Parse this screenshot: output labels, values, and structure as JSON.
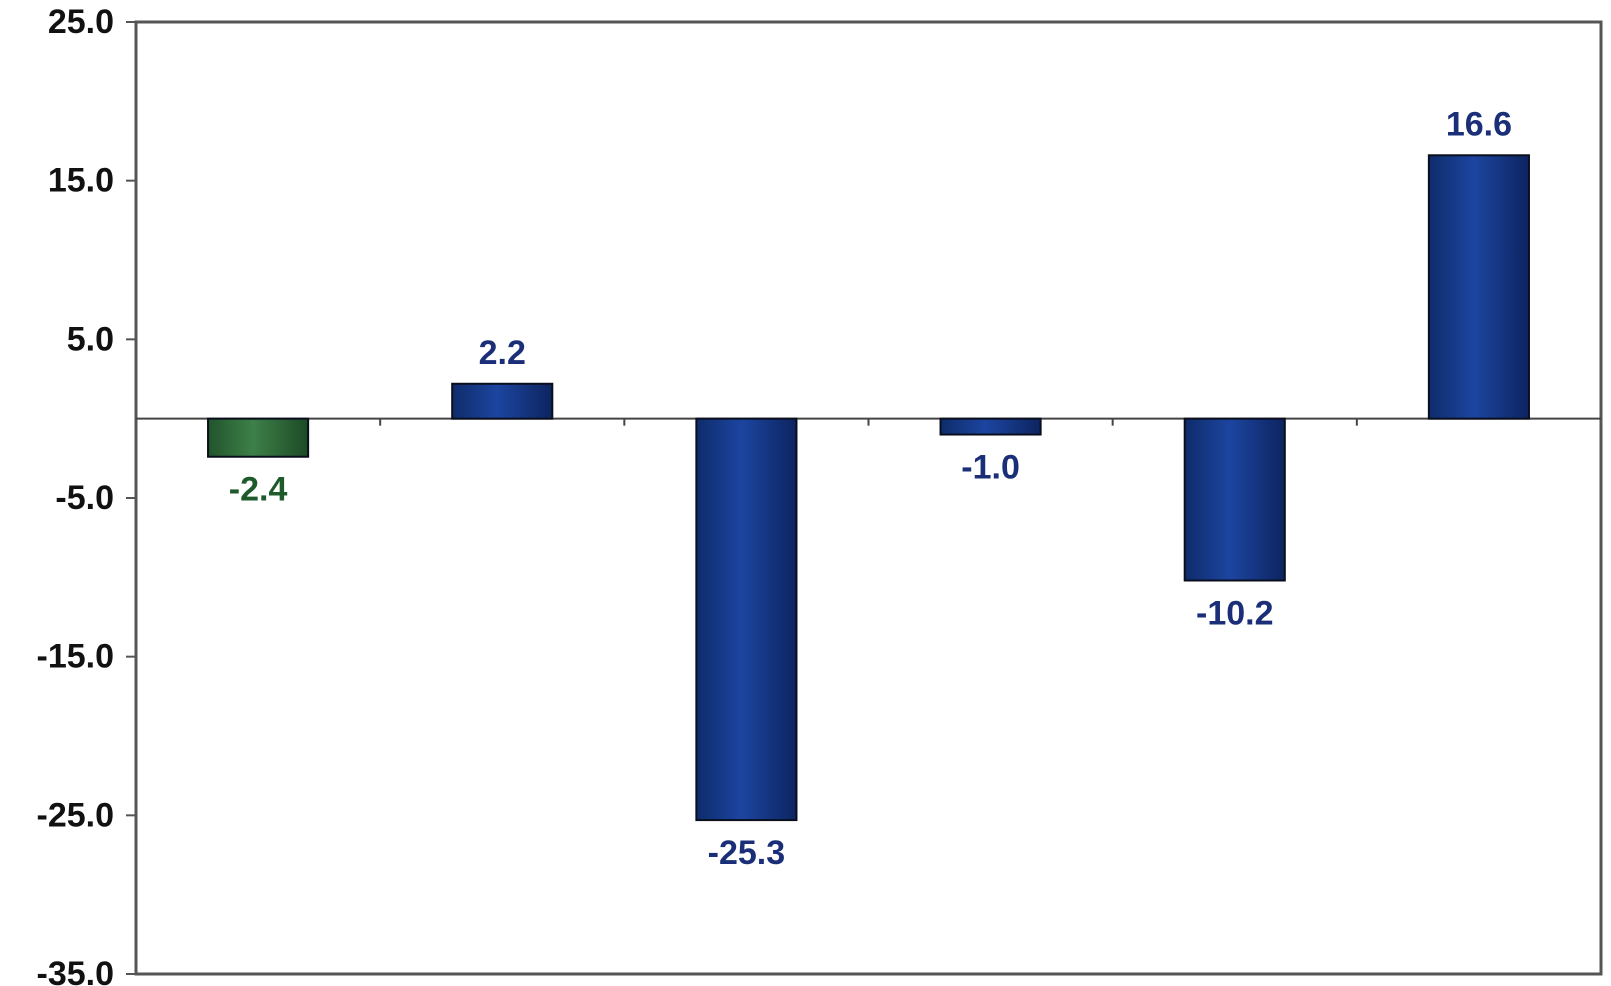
{
  "chart_data": {
    "type": "bar",
    "categories": [
      "",
      "",
      "",
      "",
      "",
      ""
    ],
    "values": [
      -2.4,
      2.2,
      -25.3,
      -1.0,
      -10.2,
      16.6
    ],
    "data_labels": [
      "-2.4",
      "2.2",
      "-25.3",
      "-1.0",
      "-10.2",
      "16.6"
    ],
    "bar_colors": [
      "#2f6b3a",
      "#173a86",
      "#173a86",
      "#173a86",
      "#173a86",
      "#173a86"
    ],
    "label_colors": [
      "#1f5a2a",
      "#1a2f78",
      "#1a2f78",
      "#1a2f78",
      "#1a2f78",
      "#1a2f78"
    ],
    "ylim": [
      -35,
      25
    ],
    "yticks": [
      25,
      15,
      5,
      -5,
      -15,
      -25,
      -35
    ],
    "ytick_labels": [
      "25.0",
      "15.0",
      "5.0",
      "-5.0",
      "-15.0",
      "-25.0",
      "-35.0"
    ],
    "title": "",
    "xlabel": "",
    "ylabel": "",
    "grid": false,
    "legend": "none"
  }
}
